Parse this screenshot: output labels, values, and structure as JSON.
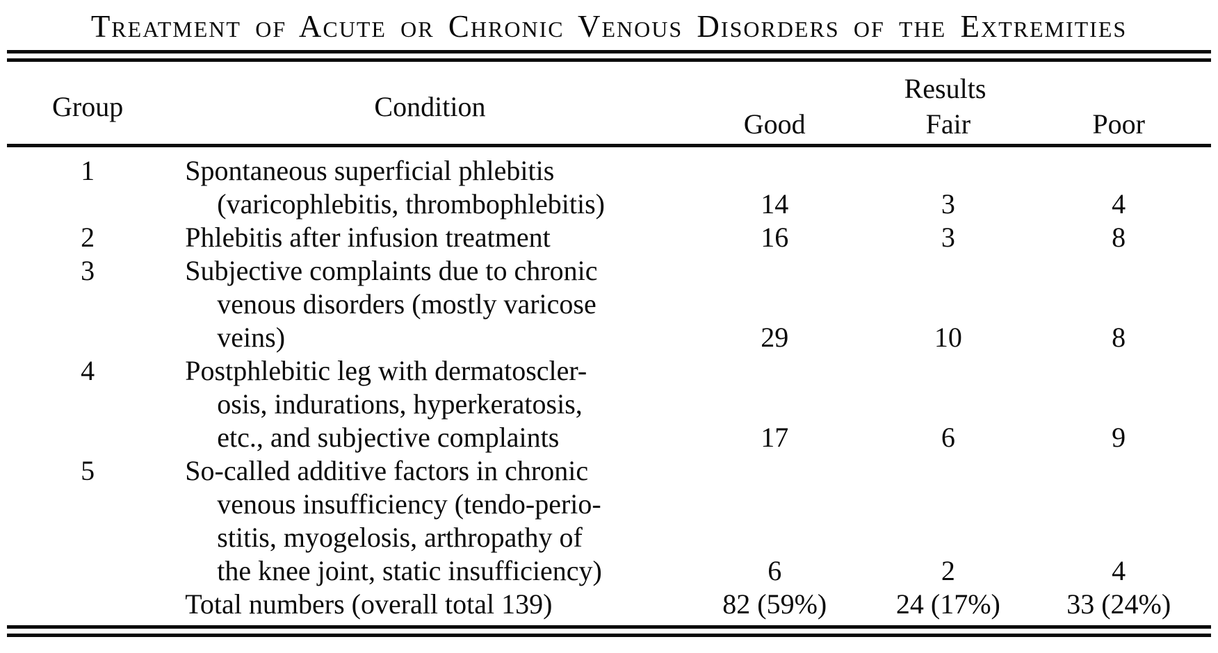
{
  "page": {
    "colors": {
      "paper": "#ffffff",
      "ink": "#0a0a0a"
    }
  },
  "table": {
    "title": "Treatment of Acute or Chronic Venous Disorders of the Extremities",
    "header": {
      "group": "Group",
      "condition": "Condition",
      "results": "Results",
      "good": "Good",
      "fair": "Fair",
      "poor": "Poor"
    },
    "rows": [
      {
        "group": "1",
        "lines": [
          "Spontaneous superficial phlebitis",
          "(varicophlebitis, thrombophlebitis)"
        ],
        "good": "14",
        "fair": "3",
        "poor": "4"
      },
      {
        "group": "2",
        "lines": [
          "Phlebitis after infusion treatment"
        ],
        "good": "16",
        "fair": "3",
        "poor": "8"
      },
      {
        "group": "3",
        "lines": [
          "Subjective complaints due to chronic",
          "venous disorders (mostly varicose",
          "veins)"
        ],
        "good": "29",
        "fair": "10",
        "poor": "8"
      },
      {
        "group": "4",
        "lines": [
          "Postphlebitic leg with dermatoscler-",
          "osis, indurations, hyperkeratosis,",
          "etc., and subjective complaints"
        ],
        "good": "17",
        "fair": "6",
        "poor": "9"
      },
      {
        "group": "5",
        "lines": [
          "So-called additive factors in chronic",
          "venous insufficiency (tendo-perio-",
          "stitis, myogelosis, arthropathy of",
          "the knee joint, static insufficiency)"
        ],
        "good": "6",
        "fair": "2",
        "poor": "4"
      }
    ],
    "totals": {
      "label": "Total numbers (overall total 139)",
      "good": "82 (59%)",
      "fair": "24 (17%)",
      "poor": "33 (24%)"
    }
  }
}
